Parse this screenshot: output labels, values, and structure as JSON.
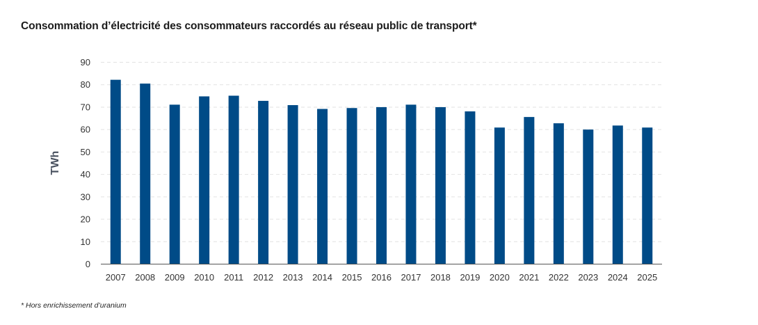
{
  "chart_data": {
    "type": "bar",
    "title": "Consommation d’électricité des consommateurs raccordés au réseau public de transport*",
    "xlabel": "",
    "ylabel": "TWh",
    "ylim": [
      0,
      90
    ],
    "yticks": [
      0,
      10,
      20,
      30,
      40,
      50,
      60,
      70,
      80,
      90
    ],
    "grid": true,
    "categories": [
      "2007",
      "2008",
      "2009",
      "2010",
      "2011",
      "2012",
      "2013",
      "2014",
      "2015",
      "2016",
      "2017",
      "2018",
      "2019",
      "2020",
      "2021",
      "2022",
      "2023",
      "2024",
      "2025"
    ],
    "values": [
      82.2,
      80.5,
      71.1,
      74.8,
      75.1,
      72.8,
      70.9,
      69.2,
      69.6,
      70.0,
      71.1,
      70.0,
      68.1,
      60.9,
      65.6,
      62.8,
      60.0,
      61.8,
      60.9
    ],
    "bar_color": "#004b87",
    "footnote": "* Hors enrichissement d’uranium"
  }
}
